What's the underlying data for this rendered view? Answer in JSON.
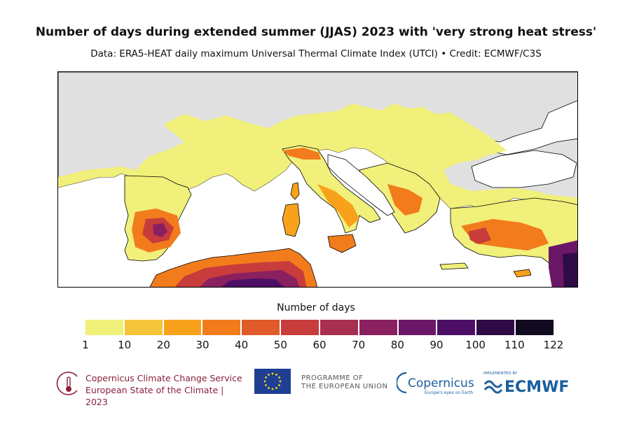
{
  "header": {
    "title": "Number of days during extended summer (JJAS) 2023 with 'very strong heat stress'",
    "subtitle": "Data: ERA5-HEAT daily maximum Universal Thermal Climate Index (UTCI) • Credit: ECMWF/C3S"
  },
  "legend": {
    "title": "Number of days",
    "ticks": [
      "1",
      "10",
      "20",
      "30",
      "40",
      "50",
      "60",
      "70",
      "80",
      "90",
      "100",
      "110",
      "122"
    ],
    "colors": [
      "#f0f07a",
      "#f5c43a",
      "#f7a21a",
      "#f27c1c",
      "#e05a2a",
      "#c93c3c",
      "#a82f4f",
      "#8a2060",
      "#6b1768",
      "#4d0f66",
      "#2e0b45",
      "#120a1f"
    ]
  },
  "map": {
    "no_data_color": "#e0e0e0",
    "sea_color": "#ffffff",
    "coastline_color": "#000000"
  },
  "footer": {
    "c3s_line1": "Copernicus Climate Change Service",
    "c3s_line2": "European State of the Climate | 2023",
    "eu_line1": "PROGRAMME OF",
    "eu_line2": "THE EUROPEAN UNION",
    "copernicus_name": "Copernicus",
    "copernicus_tagline": "Europe's eyes on Earth",
    "ecmwf_implemented": "IMPLEMENTED BY",
    "ecmwf_name": "ECMWF"
  }
}
